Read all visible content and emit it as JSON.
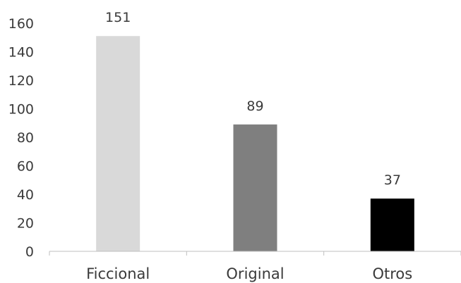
{
  "chart_data": {
    "type": "bar",
    "title": "",
    "xlabel": "",
    "ylabel": "",
    "categories": [
      "Ficcional",
      "Original",
      "Otros"
    ],
    "values": [
      151,
      89,
      37
    ],
    "colors": [
      "#d9d9d9",
      "#7f7f7f",
      "#000000"
    ],
    "ylim": [
      0,
      160
    ],
    "yticks": [
      0,
      20,
      40,
      60,
      80,
      100,
      120,
      140,
      160
    ],
    "data_labels": [
      "151",
      "89",
      "37"
    ],
    "grid": false,
    "legend": "none"
  }
}
